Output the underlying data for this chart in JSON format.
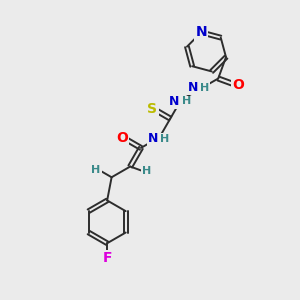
{
  "background_color": "#ebebeb",
  "bond_color": "#2d2d2d",
  "atom_colors": {
    "N": "#0000cc",
    "O": "#ff0000",
    "S": "#bbbb00",
    "F": "#dd00dd",
    "H": "#3a8a8a",
    "C": "#2d2d2d"
  },
  "bond_lw": 1.4,
  "font_size": 9
}
